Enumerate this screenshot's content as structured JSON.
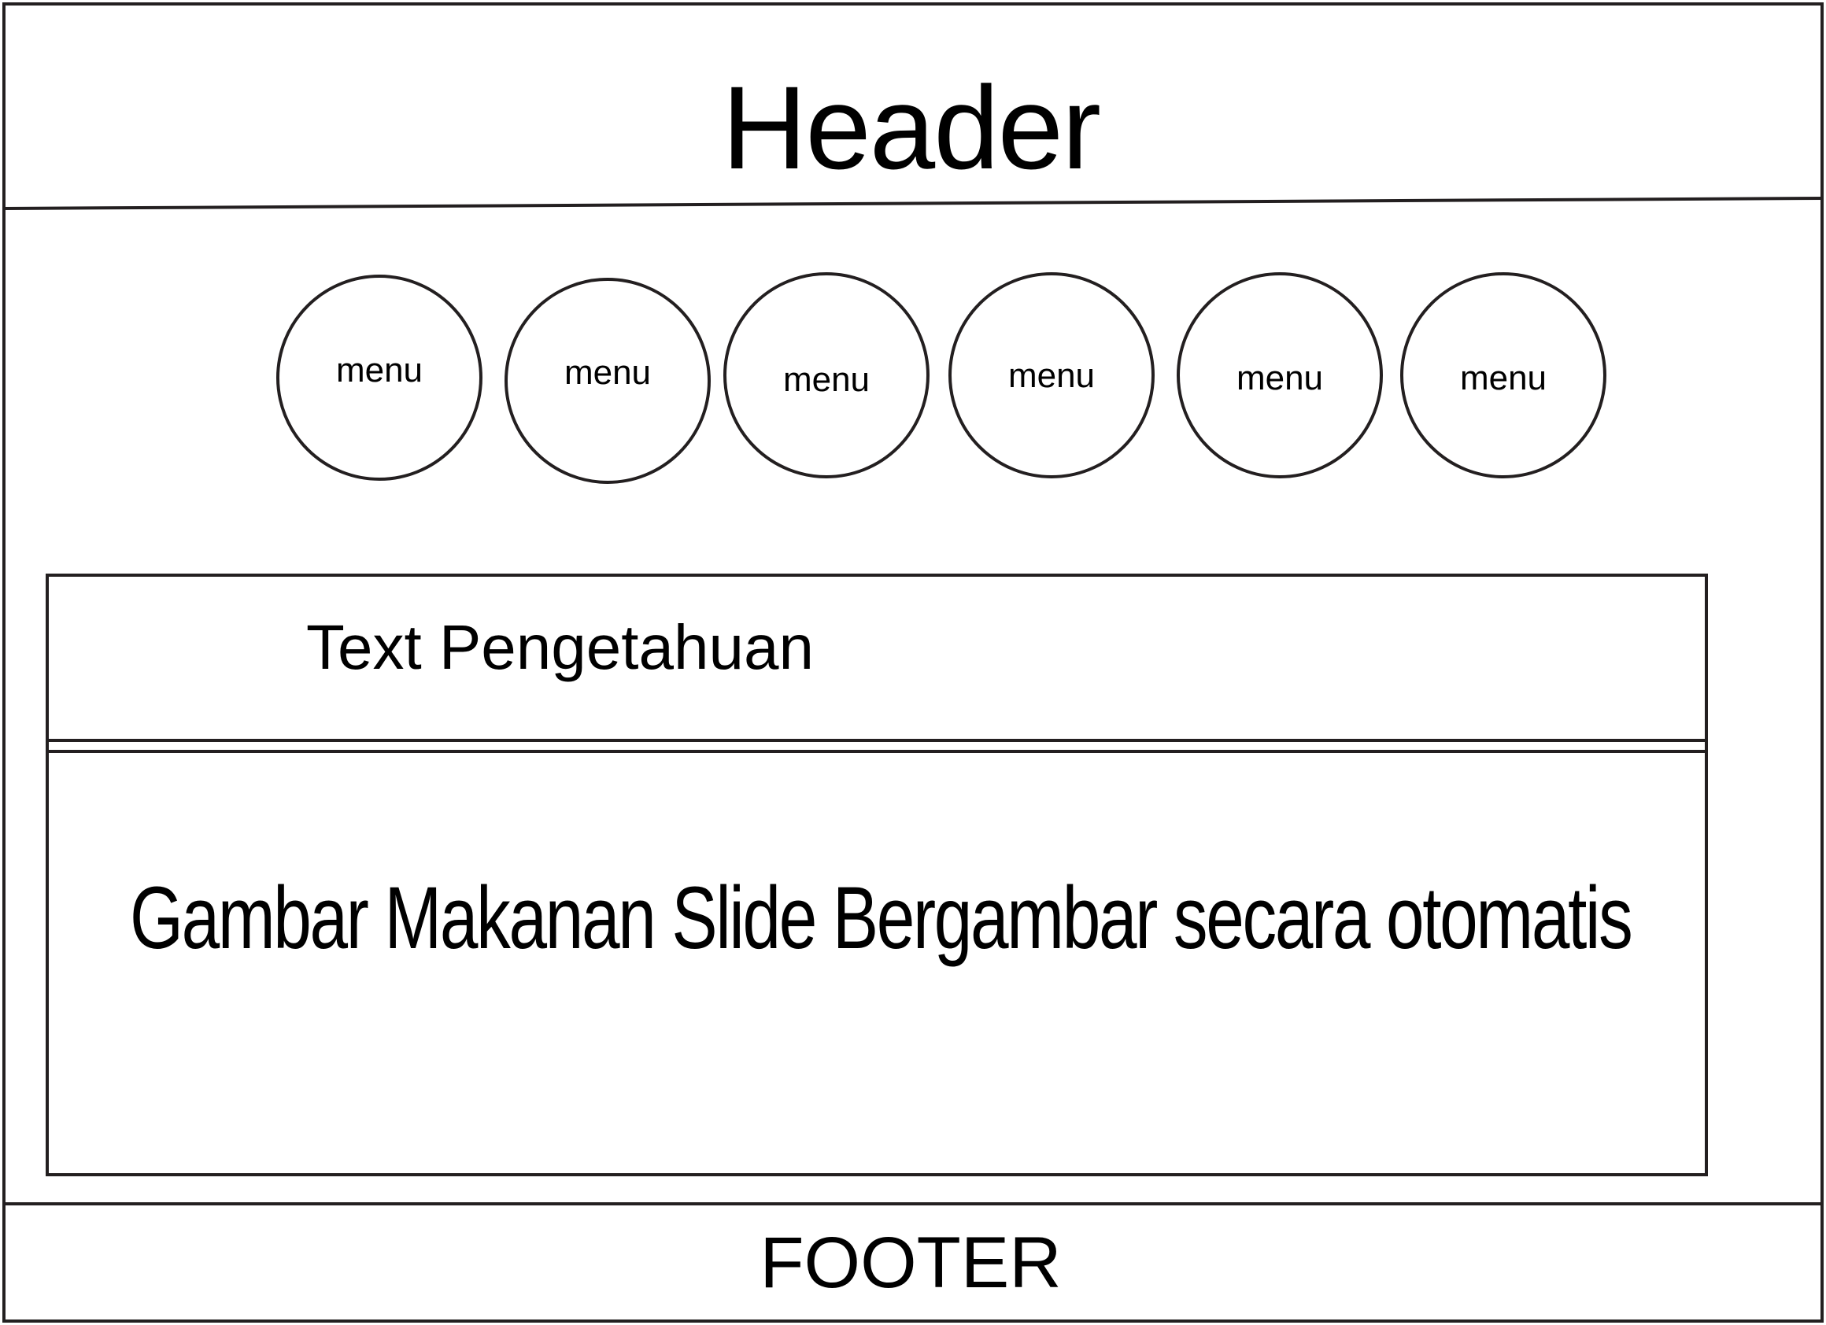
{
  "header": {
    "title": "Header"
  },
  "menu": {
    "items": [
      {
        "label": "menu"
      },
      {
        "label": "menu"
      },
      {
        "label": "menu"
      },
      {
        "label": "menu"
      },
      {
        "label": "menu"
      },
      {
        "label": "menu"
      }
    ]
  },
  "content": {
    "knowledge_text": "Text Pengetahuan",
    "slide_text": "Gambar Makanan Slide Bergambar secara otomatis"
  },
  "footer": {
    "title": "FOOTER"
  },
  "colors": {
    "line": "#231f20",
    "background": "#ffffff"
  }
}
